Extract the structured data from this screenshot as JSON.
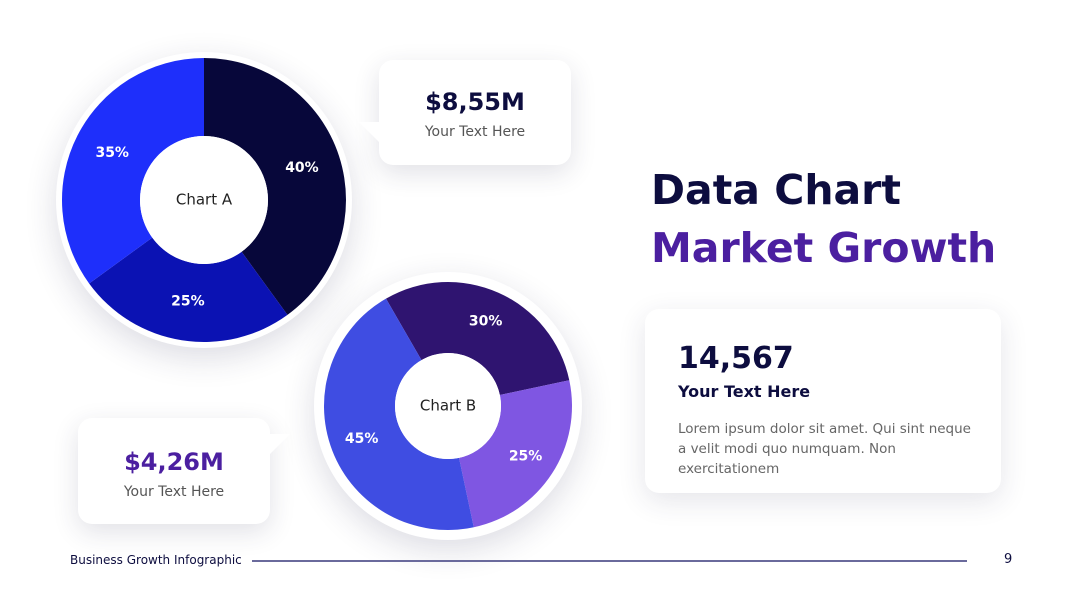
{
  "title": {
    "line1": "Data Chart",
    "line2": "Market Growth"
  },
  "chart_data": [
    {
      "type": "pie",
      "title": "Chart A",
      "categories": [
        "40%",
        "25%",
        "35%"
      ],
      "values": [
        40,
        25,
        35
      ],
      "colors": [
        "#07073a",
        "#0b12b3",
        "#1e2ffb"
      ],
      "donut": true
    },
    {
      "type": "pie",
      "title": "Chart B",
      "categories": [
        "30%",
        "25%",
        "45%"
      ],
      "values": [
        30,
        25,
        45
      ],
      "colors": [
        "#2f1470",
        "#7f56e2",
        "#3f4de2"
      ],
      "donut": true
    }
  ],
  "callouts": [
    {
      "value": "$8,55M",
      "label": "Your Text Here",
      "color": "#0d0d3f"
    },
    {
      "value": "$4,26M",
      "label": "Your Text Here",
      "color": "#4b1fa0"
    }
  ],
  "stat_card": {
    "number": "14,567",
    "subtitle": "Your Text Here",
    "body": "Lorem ipsum dolor sit amet. Qui sint neque a velit modi quo numquam. Non exercitationem"
  },
  "footer": {
    "label": "Business Growth Infographic",
    "page": "9"
  }
}
